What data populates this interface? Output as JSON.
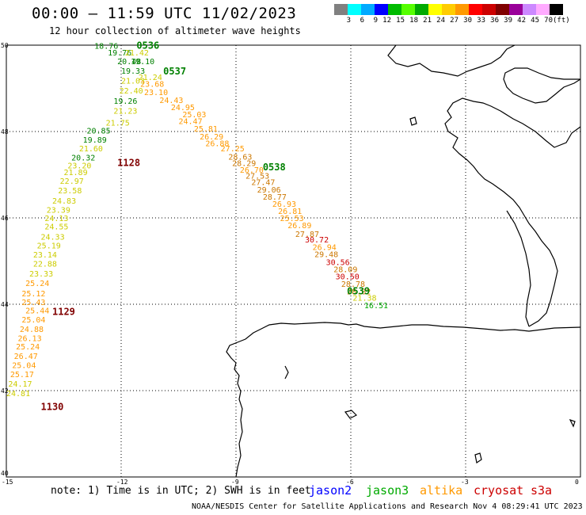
{
  "header": {
    "title": "00:00 – 11:59 UTC 11/02/2023",
    "subtitle": "12 hour collection of altimeter wave heights"
  },
  "colorbar": {
    "colors": [
      "#808080",
      "#00ffff",
      "#00aaff",
      "#0000ff",
      "#00bb00",
      "#55ff00",
      "#00aa00",
      "#ffff00",
      "#ffcc00",
      "#ff9900",
      "#ff0000",
      "#cc0000",
      "#800000",
      "#990099",
      "#cc88ff",
      "#ffaaff",
      "#000000"
    ],
    "labels": [
      "3",
      "6",
      "9",
      "12",
      "15",
      "18",
      "21",
      "24",
      "27",
      "30",
      "33",
      "36",
      "39",
      "42",
      "45",
      "70",
      "(ft)"
    ]
  },
  "axes": {
    "lat_labels": [
      "50",
      "48",
      "46",
      "44",
      "42",
      "40"
    ],
    "lon_labels": [
      "-15",
      "-12",
      "-9",
      "-6",
      "-3",
      "0"
    ]
  },
  "tracks": [
    {
      "time": "0536",
      "color": "#008000",
      "lon": -11.6,
      "lat": 49.92
    },
    {
      "time": "0537",
      "color": "#008000",
      "lon": -10.9,
      "lat": 49.32
    },
    {
      "time": "0538",
      "color": "#008000",
      "lon": -8.3,
      "lat": 47.1
    },
    {
      "time": "0539",
      "color": "#008000",
      "lon": -6.1,
      "lat": 44.23
    },
    {
      "time": "1128",
      "color": "#800000",
      "lon": -12.1,
      "lat": 47.2
    },
    {
      "time": "1129",
      "color": "#800000",
      "lon": -13.8,
      "lat": 43.75
    },
    {
      "time": "1130",
      "color": "#800000",
      "lon": -14.1,
      "lat": 41.55
    }
  ],
  "track_a": [
    {
      "v": "18.76",
      "c": "#008000",
      "lon": -12.7,
      "lat": 49.92
    },
    {
      "v": "19.76",
      "c": "#008000",
      "lon": -12.35,
      "lat": 49.76
    },
    {
      "v": "21.42",
      "c": "#cccc00",
      "lon": -11.9,
      "lat": 49.76
    },
    {
      "v": "20.48",
      "c": "#008000",
      "lon": -12.1,
      "lat": 49.56
    },
    {
      "v": "19.10",
      "c": "#008000",
      "lon": -11.75,
      "lat": 49.56
    },
    {
      "v": "19.33",
      "c": "#008000",
      "lon": -12.0,
      "lat": 49.34
    },
    {
      "v": "21.24",
      "c": "#cccc00",
      "lon": -11.55,
      "lat": 49.19
    },
    {
      "v": "21.03",
      "c": "#cccc00",
      "lon": -12.0,
      "lat": 49.11
    },
    {
      "v": "23.68",
      "c": "#ff9900",
      "lon": -11.5,
      "lat": 49.04
    },
    {
      "v": "22.40",
      "c": "#cccc00",
      "lon": -12.05,
      "lat": 48.88
    },
    {
      "v": "23.10",
      "c": "#ff9900",
      "lon": -11.4,
      "lat": 48.84
    },
    {
      "v": "24.43",
      "c": "#ff9900",
      "lon": -11.0,
      "lat": 48.66
    },
    {
      "v": "19.26",
      "c": "#008000",
      "lon": -12.2,
      "lat": 48.64
    },
    {
      "v": "24.95",
      "c": "#ff9900",
      "lon": -10.7,
      "lat": 48.5
    },
    {
      "v": "21.23",
      "c": "#cccc00",
      "lon": -12.2,
      "lat": 48.41
    },
    {
      "v": "25.03",
      "c": "#ff9900",
      "lon": -10.4,
      "lat": 48.33
    },
    {
      "v": "24.47",
      "c": "#ff9900",
      "lon": -10.5,
      "lat": 48.17
    },
    {
      "v": "21.75",
      "c": "#cccc00",
      "lon": -12.4,
      "lat": 48.14
    },
    {
      "v": "25.81",
      "c": "#ff9900",
      "lon": -10.1,
      "lat": 48.0
    },
    {
      "v": "20.85",
      "c": "#008000",
      "lon": -12.9,
      "lat": 47.95
    },
    {
      "v": "26.29",
      "c": "#ff9900",
      "lon": -9.95,
      "lat": 47.82
    },
    {
      "v": "19.89",
      "c": "#008000",
      "lon": -13.0,
      "lat": 47.74
    },
    {
      "v": "26.88",
      "c": "#ff9900",
      "lon": -9.8,
      "lat": 47.66
    },
    {
      "v": "21.60",
      "c": "#cccc00",
      "lon": -13.1,
      "lat": 47.54
    },
    {
      "v": "27.25",
      "c": "#ff9900",
      "lon": -9.4,
      "lat": 47.54
    },
    {
      "v": "28.63",
      "c": "#cc7700",
      "lon": -9.2,
      "lat": 47.35
    },
    {
      "v": "20.32",
      "c": "#008000",
      "lon": -13.3,
      "lat": 47.33
    },
    {
      "v": "28.29",
      "c": "#cc7700",
      "lon": -9.1,
      "lat": 47.2
    },
    {
      "v": "23.20",
      "c": "#cccc00",
      "lon": -13.4,
      "lat": 47.15
    },
    {
      "v": "26.70",
      "c": "#ff9900",
      "lon": -8.9,
      "lat": 47.05
    },
    {
      "v": "21.89",
      "c": "#cccc00",
      "lon": -13.5,
      "lat": 46.99
    },
    {
      "v": "27.53",
      "c": "#cc7700",
      "lon": -8.75,
      "lat": 46.91
    },
    {
      "v": "22.97",
      "c": "#cccc00",
      "lon": -13.6,
      "lat": 46.79
    },
    {
      "v": "27.47",
      "c": "#cc7700",
      "lon": -8.6,
      "lat": 46.76
    },
    {
      "v": "23.58",
      "c": "#cccc00",
      "lon": -13.65,
      "lat": 46.57
    },
    {
      "v": "29.06",
      "c": "#cc7700",
      "lon": -8.45,
      "lat": 46.59
    },
    {
      "v": "28.77",
      "c": "#cc7700",
      "lon": -8.3,
      "lat": 46.42
    },
    {
      "v": "24.83",
      "c": "#cccc00",
      "lon": -13.8,
      "lat": 46.33
    },
    {
      "v": "26.93",
      "c": "#ff9900",
      "lon": -8.05,
      "lat": 46.26
    },
    {
      "v": "23.39",
      "c": "#cccc00",
      "lon": -13.95,
      "lat": 46.12
    },
    {
      "v": "26.81",
      "c": "#ff9900",
      "lon": -7.9,
      "lat": 46.09
    },
    {
      "v": "24.13",
      "c": "#cccc00",
      "lon": -14.0,
      "lat": 45.93
    },
    {
      "v": "25.53",
      "c": "#ff9900",
      "lon": -7.85,
      "lat": 45.93
    },
    {
      "v": "26.89",
      "c": "#ff9900",
      "lon": -7.65,
      "lat": 45.76
    },
    {
      "v": "24.55",
      "c": "#cccc00",
      "lon": -14.0,
      "lat": 45.73
    },
    {
      "v": "27.87",
      "c": "#cc7700",
      "lon": -7.45,
      "lat": 45.56
    },
    {
      "v": "24.33",
      "c": "#cccc00",
      "lon": -14.1,
      "lat": 45.5
    },
    {
      "v": "30.72",
      "c": "#cc0000",
      "lon": -7.2,
      "lat": 45.43
    },
    {
      "v": "25.19",
      "c": "#cccc00",
      "lon": -14.2,
      "lat": 45.29
    },
    {
      "v": "26.94",
      "c": "#ff9900",
      "lon": -7.0,
      "lat": 45.26
    },
    {
      "v": "23.14",
      "c": "#cccc00",
      "lon": -14.3,
      "lat": 45.08
    },
    {
      "v": "29.48",
      "c": "#cc7700",
      "lon": -6.95,
      "lat": 45.09
    },
    {
      "v": "30.56",
      "c": "#cc0000",
      "lon": -6.65,
      "lat": 44.91
    },
    {
      "v": "22.88",
      "c": "#cccc00",
      "lon": -14.3,
      "lat": 44.87
    },
    {
      "v": "28.09",
      "c": "#cc7700",
      "lon": -6.45,
      "lat": 44.74
    },
    {
      "v": "23.33",
      "c": "#cccc00",
      "lon": -14.4,
      "lat": 44.64
    },
    {
      "v": "30.50",
      "c": "#cc0000",
      "lon": -6.4,
      "lat": 44.58
    },
    {
      "v": "25.24",
      "c": "#ff9900",
      "lon": -14.5,
      "lat": 44.42
    },
    {
      "v": "28.78",
      "c": "#cc7700",
      "lon": -6.25,
      "lat": 44.4
    },
    {
      "v": "28.82",
      "c": "#cc7700",
      "lon": -6.1,
      "lat": 44.23
    },
    {
      "v": "25.12",
      "c": "#ff9900",
      "lon": -14.6,
      "lat": 44.18
    },
    {
      "v": "21.38",
      "c": "#cccc00",
      "lon": -5.95,
      "lat": 44.08
    },
    {
      "v": "25.43",
      "c": "#ff9900",
      "lon": -14.6,
      "lat": 43.98
    },
    {
      "v": "16.51",
      "c": "#00aa00",
      "lon": -5.65,
      "lat": 43.91
    },
    {
      "v": "25.44",
      "c": "#ff9900",
      "lon": -14.5,
      "lat": 43.79
    },
    {
      "v": "25.04",
      "c": "#ff9900",
      "lon": -14.6,
      "lat": 43.58
    },
    {
      "v": "24.88",
      "c": "#ff9900",
      "lon": -14.65,
      "lat": 43.36
    },
    {
      "v": "26.13",
      "c": "#ff9900",
      "lon": -14.7,
      "lat": 43.15
    },
    {
      "v": "25.24",
      "c": "#ff9900",
      "lon": -14.75,
      "lat": 42.95
    },
    {
      "v": "26.47",
      "c": "#ff9900",
      "lon": -14.8,
      "lat": 42.73
    },
    {
      "v": "25.04",
      "c": "#ff9900",
      "lon": -14.85,
      "lat": 42.52
    },
    {
      "v": "25.17",
      "c": "#ff9900",
      "lon": -14.9,
      "lat": 42.31
    },
    {
      "v": "24.17",
      "c": "#cccc00",
      "lon": -14.95,
      "lat": 42.09
    },
    {
      "v": "24.81",
      "c": "#cccc00",
      "lon": -15.0,
      "lat": 41.87
    }
  ],
  "note": "note: 1) Time is in UTC; 2) SWH is in feet",
  "legend": [
    {
      "name": "jason2",
      "color": "#0000ff"
    },
    {
      "name": "jason3",
      "color": "#00aa00"
    },
    {
      "name": "altika",
      "color": "#ff9900"
    },
    {
      "name": "cryosat",
      "color": "#cc0000"
    },
    {
      "name": "s3a",
      "color": "#cc0000"
    }
  ],
  "footer": "NOAA/NESDIS Center for Satellite Applications and Research   Nov  4 08:29:41 UTC 2023"
}
